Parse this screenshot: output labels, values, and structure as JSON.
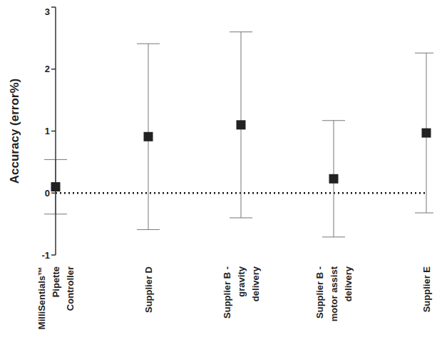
{
  "chart_data": {
    "type": "scatter",
    "y_label": "Accuracy (error%)",
    "categories": [
      "MilliSentials™ Pipette Controller",
      "Supplier D",
      "Supplier B - gravity delivery",
      "Supplier B - motor assist delivery",
      "Supplier E"
    ],
    "values": [
      0.1,
      0.91,
      1.1,
      0.23,
      0.97
    ],
    "errors": [
      0.44,
      1.5,
      1.5,
      0.94,
      1.29
    ],
    "ylim": [
      -1,
      3
    ],
    "yticks": [
      -1,
      0,
      1,
      2,
      3
    ],
    "reference_line": 0,
    "grid": false,
    "color": "#222222",
    "marker": "square"
  }
}
